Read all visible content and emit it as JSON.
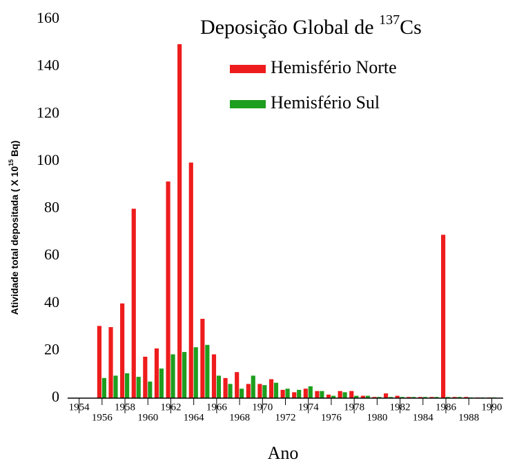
{
  "chart_data": {
    "type": "bar",
    "title": "Deposição Global de ",
    "title_superscript": "137",
    "title_suffix": "Cs",
    "x_label": "Ano",
    "y_label": "Atividade total depositada ( X 10",
    "y_label_superscript": "15",
    "y_label_suffix": " Bq)",
    "x": [
      1956,
      1957,
      1958,
      1959,
      1960,
      1961,
      1962,
      1963,
      1964,
      1965,
      1966,
      1967,
      1968,
      1969,
      1970,
      1971,
      1972,
      1973,
      1974,
      1975,
      1976,
      1977,
      1978,
      1979,
      1980,
      1981,
      1982,
      1983,
      1984,
      1985,
      1986,
      1987,
      1988,
      1989,
      1990
    ],
    "series": [
      {
        "name": "Hemisfério Norte",
        "color": "#ee1c1c",
        "values": [
          30.5,
          30,
          40,
          80,
          17.5,
          21,
          91.5,
          149.5,
          99.5,
          33.5,
          18.5,
          8.5,
          11,
          6,
          6,
          8,
          3.5,
          2.5,
          4,
          3,
          1.5,
          3,
          3,
          1,
          0.5,
          2,
          1,
          0.5,
          0.5,
          0.5,
          69,
          0.5,
          0.5,
          0.3,
          0.3
        ]
      },
      {
        "name": "Hemisfério Sul",
        "color": "#1e9e1e",
        "values": [
          8.5,
          9.5,
          10.5,
          9,
          7,
          12.5,
          18.5,
          19.5,
          21.5,
          22.5,
          9.5,
          6,
          4,
          9.5,
          5.5,
          6.5,
          4,
          3.5,
          5,
          3,
          1,
          2.5,
          1,
          1,
          0.5,
          0.5,
          0.5,
          0.5,
          0.5,
          0.5,
          0.5,
          0.5,
          0.3,
          0.3,
          0.3
        ]
      }
    ],
    "xlim": [
      1953,
      1991
    ],
    "xticks": [
      1954,
      1956,
      1958,
      1960,
      1962,
      1964,
      1966,
      1968,
      1970,
      1972,
      1974,
      1976,
      1978,
      1980,
      1982,
      1984,
      1986,
      1988,
      1990
    ],
    "ylim": [
      0,
      160
    ],
    "yticks": [
      0,
      20,
      40,
      60,
      80,
      100,
      120,
      140,
      160
    ],
    "grid": false
  }
}
